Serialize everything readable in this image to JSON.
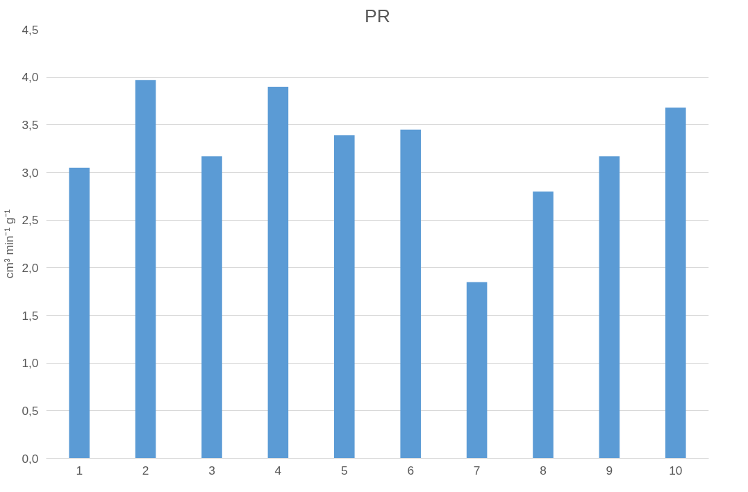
{
  "chart_data": {
    "type": "bar",
    "title": "PR",
    "ylabel": "cm³ min⁻¹ g⁻¹",
    "categories": [
      "1",
      "2",
      "3",
      "4",
      "5",
      "6",
      "7",
      "8",
      "9",
      "10"
    ],
    "values": [
      3.05,
      3.97,
      3.17,
      3.9,
      3.39,
      3.45,
      1.85,
      2.8,
      3.17,
      3.68
    ],
    "color": "#5b9bd5",
    "ylim": [
      0,
      4.5
    ],
    "yticks": [
      {
        "value": 0,
        "label": "0,0"
      },
      {
        "value": 0.5,
        "label": "0,5"
      },
      {
        "value": 1,
        "label": "1,0"
      },
      {
        "value": 1.5,
        "label": "1,5"
      },
      {
        "value": 2,
        "label": "2,0"
      },
      {
        "value": 2.5,
        "label": "2,5"
      },
      {
        "value": 3,
        "label": "3,0"
      },
      {
        "value": 3.5,
        "label": "3,5"
      },
      {
        "value": 4,
        "label": "4,0"
      },
      {
        "value": 4.5,
        "label": "4,5"
      }
    ],
    "grid": "y"
  }
}
